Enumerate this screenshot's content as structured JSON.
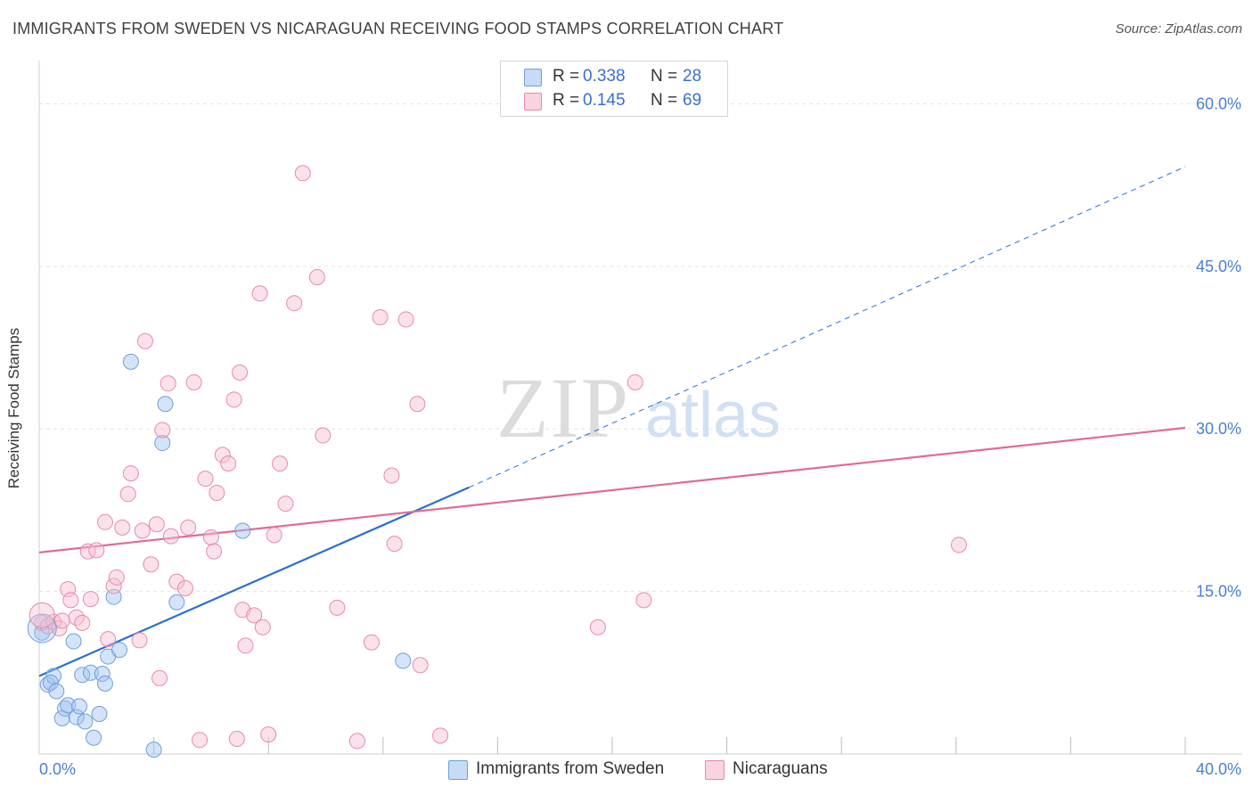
{
  "title": "IMMIGRANTS FROM SWEDEN VS NICARAGUAN RECEIVING FOOD STAMPS CORRELATION CHART",
  "source": "Source: ZipAtlas.com",
  "watermark": {
    "zip": "ZIP",
    "atlas": "atlas"
  },
  "legend": {
    "rows": [
      {
        "r_label": "R = ",
        "r_value": "0.338",
        "n_label": "N = ",
        "n_value": "28",
        "color": "#a9c8f0",
        "border": "#6f9fdc"
      },
      {
        "r_label": "R = ",
        "r_value": "0.145",
        "n_label": "N = ",
        "n_value": "69",
        "color": "#f6c3d3",
        "border": "#e88aa8"
      }
    ]
  },
  "bottom_legend": [
    {
      "label": "Immigrants from Sweden",
      "color": "#c6dbf5",
      "border": "#6f9fdc"
    },
    {
      "label": "Nicaraguans",
      "color": "#f9d3df",
      "border": "#e88aa8"
    }
  ],
  "chart_data": {
    "type": "scatter",
    "title": "IMMIGRANTS FROM SWEDEN VS NICARAGUAN RECEIVING FOOD STAMPS CORRELATION CHART",
    "xlabel": "",
    "ylabel": "Receiving Food Stamps",
    "xlim": [
      0,
      40
    ],
    "ylim": [
      0,
      63
    ],
    "x_tick_labels": [
      {
        "value": 0,
        "label": "0.0%"
      },
      {
        "value": 40,
        "label": "40.0%"
      }
    ],
    "y_tick_labels": [
      {
        "value": 15,
        "label": "15.0%"
      },
      {
        "value": 30,
        "label": "30.0%"
      },
      {
        "value": 45,
        "label": "45.0%"
      },
      {
        "value": 60,
        "label": "60.0%"
      }
    ],
    "y_gridlines": [
      15,
      30,
      45,
      60
    ],
    "x_minor_ticks": [
      4,
      8,
      12,
      16,
      20,
      24,
      28,
      32,
      36,
      40
    ],
    "series": [
      {
        "name": "Immigrants from Sweden",
        "color": "#6f9fdc",
        "fill": "rgba(160,195,240,0.45)",
        "trend": {
          "x0": 0,
          "y0": 7.2,
          "x1": 15,
          "y1": 24.6,
          "dashed_to_x": 40,
          "dashed_to_y": 54.2,
          "color": "#2a6fd1"
        },
        "points": [
          [
            0.1,
            11.2
          ],
          [
            0.3,
            6.4
          ],
          [
            0.5,
            7.2
          ],
          [
            0.4,
            6.6
          ],
          [
            0.6,
            5.8
          ],
          [
            0.8,
            3.3
          ],
          [
            0.9,
            4.2
          ],
          [
            1.0,
            4.5
          ],
          [
            1.2,
            10.4
          ],
          [
            1.3,
            3.4
          ],
          [
            1.4,
            4.4
          ],
          [
            1.6,
            3.0
          ],
          [
            1.5,
            7.3
          ],
          [
            1.8,
            7.5
          ],
          [
            1.9,
            1.5
          ],
          [
            2.1,
            3.7
          ],
          [
            2.2,
            7.4
          ],
          [
            2.3,
            6.5
          ],
          [
            2.4,
            9.0
          ],
          [
            2.6,
            14.5
          ],
          [
            2.8,
            9.6
          ],
          [
            3.2,
            36.2
          ],
          [
            4.4,
            32.3
          ],
          [
            4.3,
            28.7
          ],
          [
            4.8,
            14.0
          ],
          [
            7.1,
            20.6
          ],
          [
            12.7,
            8.6
          ],
          [
            4.0,
            0.4
          ]
        ]
      },
      {
        "name": "Nicaraguans",
        "color": "#e88aa8",
        "fill": "rgba(246,190,208,0.45)",
        "trend": {
          "x0": 0,
          "y0": 18.6,
          "x1": 40,
          "y1": 30.1,
          "color": "#e06b94"
        },
        "points": [
          [
            0.1,
            12.1
          ],
          [
            0.3,
            11.8
          ],
          [
            0.5,
            12.2
          ],
          [
            0.7,
            11.6
          ],
          [
            0.8,
            12.3
          ],
          [
            1.0,
            15.2
          ],
          [
            1.1,
            14.2
          ],
          [
            1.3,
            12.6
          ],
          [
            1.5,
            12.1
          ],
          [
            1.7,
            18.7
          ],
          [
            1.8,
            14.3
          ],
          [
            2.0,
            18.8
          ],
          [
            2.3,
            21.4
          ],
          [
            2.4,
            10.6
          ],
          [
            2.6,
            15.5
          ],
          [
            2.7,
            16.3
          ],
          [
            2.9,
            20.9
          ],
          [
            3.1,
            24.0
          ],
          [
            3.2,
            25.9
          ],
          [
            3.5,
            10.5
          ],
          [
            3.6,
            20.6
          ],
          [
            3.7,
            38.1
          ],
          [
            3.9,
            17.5
          ],
          [
            4.1,
            21.2
          ],
          [
            4.3,
            29.9
          ],
          [
            4.5,
            34.2
          ],
          [
            4.6,
            20.1
          ],
          [
            4.8,
            15.9
          ],
          [
            5.1,
            15.3
          ],
          [
            5.2,
            20.9
          ],
          [
            5.4,
            34.3
          ],
          [
            5.6,
            1.3
          ],
          [
            5.8,
            25.4
          ],
          [
            6.0,
            20.0
          ],
          [
            6.1,
            18.7
          ],
          [
            6.2,
            24.1
          ],
          [
            6.4,
            27.6
          ],
          [
            6.6,
            26.8
          ],
          [
            6.8,
            32.7
          ],
          [
            7.0,
            35.2
          ],
          [
            7.1,
            13.3
          ],
          [
            7.2,
            10.0
          ],
          [
            7.5,
            12.8
          ],
          [
            7.7,
            42.5
          ],
          [
            7.8,
            11.7
          ],
          [
            8.0,
            1.8
          ],
          [
            8.2,
            20.2
          ],
          [
            8.4,
            26.8
          ],
          [
            8.6,
            23.1
          ],
          [
            8.9,
            41.6
          ],
          [
            9.2,
            53.6
          ],
          [
            9.7,
            44.0
          ],
          [
            9.9,
            29.4
          ],
          [
            10.4,
            13.5
          ],
          [
            11.1,
            1.2
          ],
          [
            11.6,
            10.3
          ],
          [
            11.9,
            40.3
          ],
          [
            12.3,
            25.7
          ],
          [
            12.4,
            19.4
          ],
          [
            12.8,
            40.1
          ],
          [
            13.2,
            32.3
          ],
          [
            13.3,
            8.2
          ],
          [
            14.0,
            1.7
          ],
          [
            6.9,
            1.4
          ],
          [
            4.2,
            7.0
          ],
          [
            19.5,
            11.7
          ],
          [
            20.8,
            34.3
          ],
          [
            21.1,
            14.2
          ],
          [
            32.1,
            19.3
          ]
        ]
      }
    ]
  }
}
